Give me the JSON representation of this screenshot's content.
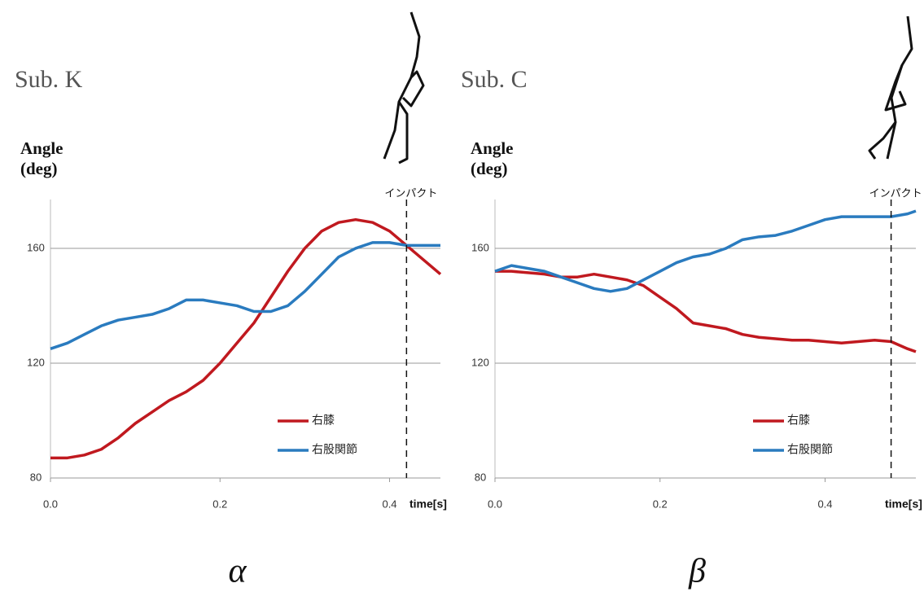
{
  "chart_data": [
    {
      "type": "line",
      "title": "Sub. K",
      "ylabel": [
        "Angle",
        "(deg)"
      ],
      "xlabel": "time[s]",
      "x": [
        0,
        0.02,
        0.04,
        0.06,
        0.08,
        0.1,
        0.12,
        0.14,
        0.16,
        0.18,
        0.2,
        0.22,
        0.24,
        0.26,
        0.28,
        0.3,
        0.32,
        0.34,
        0.36,
        0.38,
        0.4,
        0.42,
        0.44,
        0.46
      ],
      "series": [
        {
          "name": "右膝",
          "color": "#c0191f",
          "values": [
            87,
            87,
            88,
            90,
            94,
            99,
            103,
            107,
            110,
            114,
            120,
            127,
            134,
            143,
            152,
            160,
            166,
            169,
            170,
            169,
            166,
            161,
            156,
            151
          ]
        },
        {
          "name": "右股関節",
          "color": "#2a7bbf",
          "values": [
            125,
            127,
            130,
            133,
            135,
            136,
            137,
            139,
            142,
            142,
            141,
            140,
            138,
            138,
            140,
            145,
            151,
            157,
            160,
            162,
            162,
            161,
            161,
            161
          ]
        }
      ],
      "xlim": [
        0,
        0.46
      ],
      "ylim": [
        80,
        177
      ],
      "xticks": [
        {
          "value": 0,
          "label": "0.0"
        },
        0.2,
        0.4
      ],
      "yticks": [
        80,
        120,
        160
      ],
      "grid": true,
      "legend": "lower right",
      "annotation": {
        "text": "インパクト",
        "x": 0.42
      },
      "caption": "α"
    },
    {
      "type": "line",
      "title": "Sub. C",
      "ylabel": [
        "Angle",
        "(deg)"
      ],
      "xlabel": "time[s]",
      "x": [
        0,
        0.02,
        0.04,
        0.06,
        0.08,
        0.1,
        0.12,
        0.14,
        0.16,
        0.18,
        0.2,
        0.22,
        0.24,
        0.26,
        0.28,
        0.3,
        0.32,
        0.34,
        0.36,
        0.38,
        0.4,
        0.42,
        0.44,
        0.46,
        0.48,
        0.5,
        0.51
      ],
      "series": [
        {
          "name": "右膝",
          "color": "#c0191f",
          "values": [
            152,
            152,
            151.5,
            151,
            150,
            150,
            151,
            150,
            149,
            147,
            143,
            139,
            134,
            133,
            132,
            130,
            129,
            128.5,
            128,
            128,
            127.5,
            127,
            127.5,
            128,
            127.5,
            125,
            124
          ]
        },
        {
          "name": "右股関節",
          "color": "#2a7bbf",
          "values": [
            152,
            154,
            153,
            152,
            150,
            148,
            146,
            145,
            146,
            149,
            152,
            155,
            157,
            158,
            160,
            163,
            164,
            164.5,
            166,
            168,
            170,
            171,
            171,
            171,
            171,
            172,
            173
          ]
        }
      ],
      "xlim": [
        0,
        0.51
      ],
      "ylim": [
        80,
        177
      ],
      "xticks": [
        {
          "value": 0,
          "label": "0.0"
        },
        0.2,
        0.4
      ],
      "yticks": [
        80,
        120,
        160
      ],
      "grid": true,
      "legend": "lower right",
      "annotation": {
        "text": "インパクト",
        "x": 0.48
      },
      "caption": "β"
    }
  ]
}
